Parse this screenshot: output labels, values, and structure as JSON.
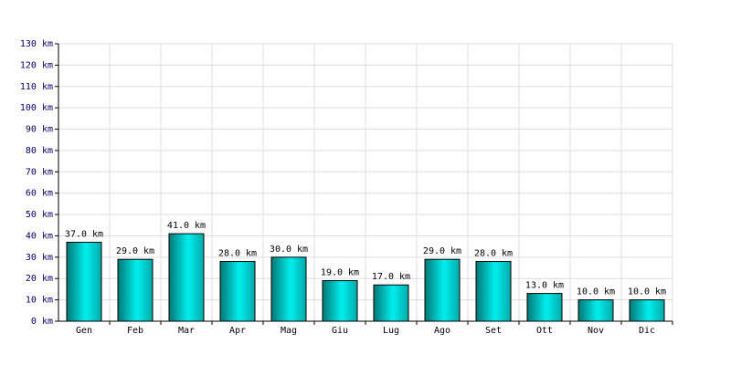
{
  "chart_data": {
    "type": "bar",
    "categories": [
      "Gen",
      "Feb",
      "Mar",
      "Apr",
      "Mag",
      "Giu",
      "Lug",
      "Ago",
      "Set",
      "Ott",
      "Nov",
      "Dic"
    ],
    "values": [
      37,
      29,
      41,
      28,
      30,
      19,
      17,
      29,
      28,
      13,
      10,
      10
    ],
    "value_labels": [
      "37.0 km",
      "29.0 km",
      "41.0 km",
      "28.0 km",
      "30.0 km",
      "19.0 km",
      "17.0 km",
      "29.0 km",
      "28.0 km",
      "13.0 km",
      "10.0 km",
      "10.0 km"
    ],
    "color": "#00cccc",
    "ylim": [
      0,
      130
    ],
    "yticks": [
      {
        "value": 0,
        "label": "0 km"
      },
      {
        "value": 10,
        "label": "10 km"
      },
      {
        "value": 20,
        "label": "20 km"
      },
      {
        "value": 30,
        "label": "30 km"
      },
      {
        "value": 40,
        "label": "40 km"
      },
      {
        "value": 50,
        "label": "50 km"
      },
      {
        "value": 60,
        "label": "60 km"
      },
      {
        "value": 70,
        "label": "70 km"
      },
      {
        "value": 80,
        "label": "80 km"
      },
      {
        "value": 90,
        "label": "90 km"
      },
      {
        "value": 100,
        "label": "100 km"
      },
      {
        "value": 110,
        "label": "110 km"
      },
      {
        "value": 120,
        "label": "120 km"
      },
      {
        "value": 130,
        "label": "130 km"
      }
    ],
    "grid": true
  }
}
